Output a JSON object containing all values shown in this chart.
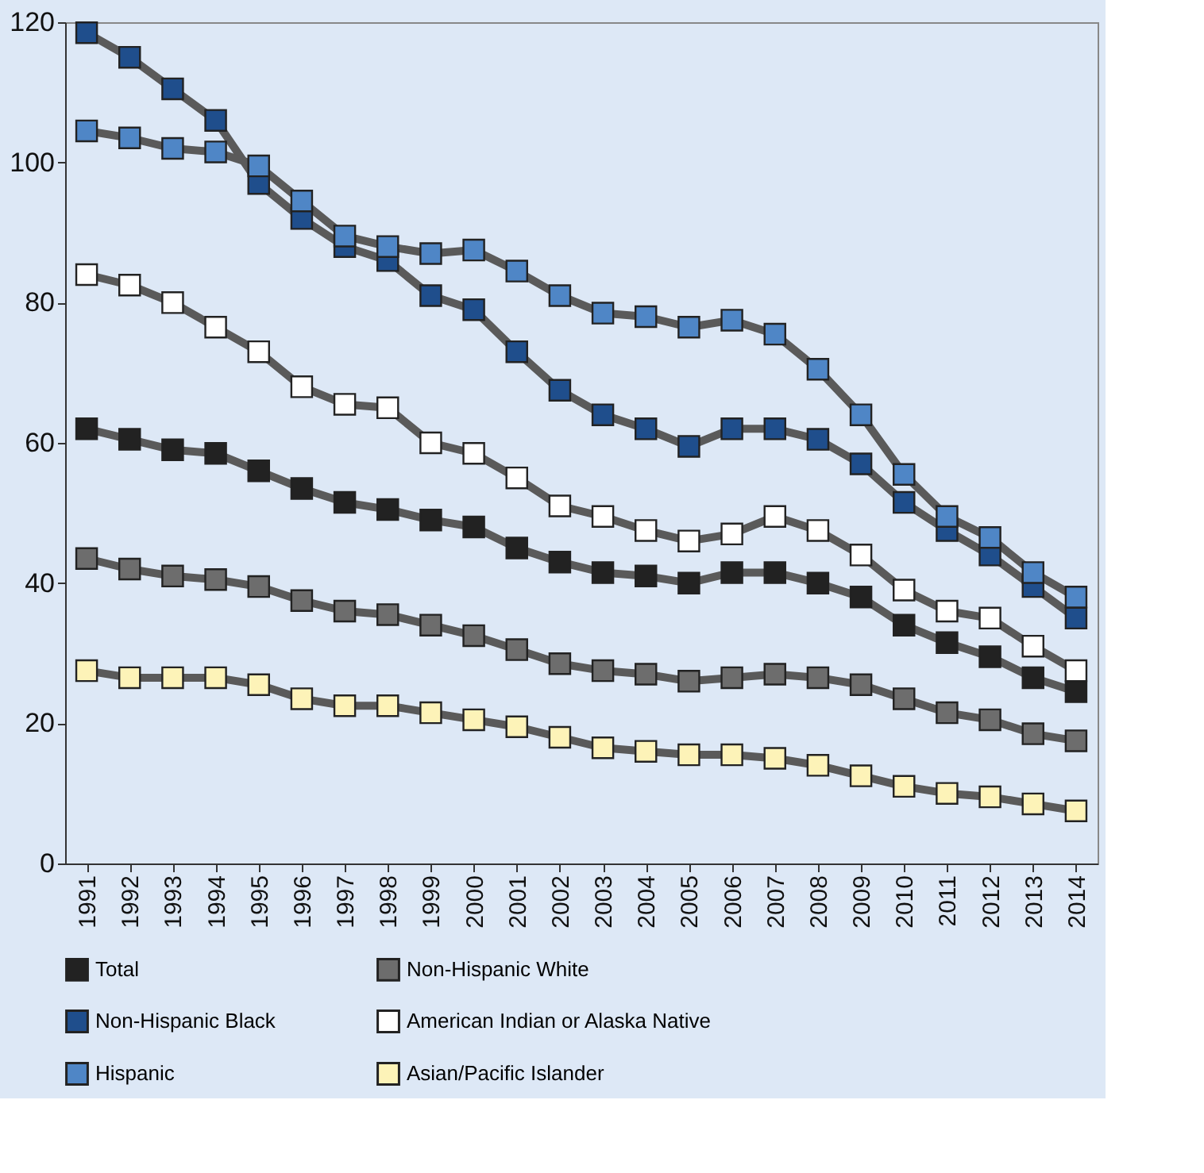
{
  "chart_data": {
    "type": "line",
    "categories": [
      "1991",
      "1992",
      "1993",
      "1994",
      "1995",
      "1996",
      "1997",
      "1998",
      "1999",
      "2000",
      "2001",
      "2002",
      "2003",
      "2004",
      "2005",
      "2006",
      "2007",
      "2008",
      "2009",
      "2010",
      "2011",
      "2012",
      "2013",
      "2014"
    ],
    "series": [
      {
        "name": "Total",
        "color": "#222222",
        "values": [
          62,
          60.5,
          59,
          58.5,
          56,
          53.5,
          51.5,
          50.5,
          49,
          48,
          45,
          43,
          41.5,
          41,
          40,
          41.5,
          41.5,
          40,
          38,
          34,
          31.5,
          29.5,
          26.5,
          24.5
        ]
      },
      {
        "name": "Non-Hispanic White",
        "color": "#6d6d6d",
        "values": [
          43.5,
          42,
          41,
          40.5,
          39.5,
          37.5,
          36,
          35.5,
          34,
          32.5,
          30.5,
          28.5,
          27.5,
          27,
          26,
          26.5,
          27,
          26.5,
          25.5,
          23.5,
          21.5,
          20.5,
          18.5,
          17.5
        ]
      },
      {
        "name": "Non-Hispanic Black",
        "color": "#1f4e8c",
        "values": [
          118.5,
          115,
          110.5,
          106,
          97,
          92,
          88,
          86,
          81,
          79,
          73,
          67.5,
          64,
          62,
          59.5,
          62,
          62,
          60.5,
          57,
          51.5,
          47.5,
          44,
          39.5,
          35
        ]
      },
      {
        "name": "American Indian or Alaska Native",
        "color": "#ffffff",
        "values": [
          84,
          82.5,
          80,
          76.5,
          73,
          68,
          65.5,
          65,
          60,
          58.5,
          55,
          51,
          49.5,
          47.5,
          46,
          47,
          49.5,
          47.5,
          44,
          39,
          36,
          35,
          31,
          27.5
        ]
      },
      {
        "name": "Hispanic",
        "color": "#4f86c6",
        "values": [
          104.5,
          103.5,
          102,
          101.5,
          99.5,
          94.5,
          89.5,
          88,
          87,
          87.5,
          84.5,
          81,
          78.5,
          78,
          76.5,
          77.5,
          75.5,
          70.5,
          64,
          55.5,
          49.5,
          46.5,
          41.5,
          38
        ]
      },
      {
        "name": "Asian/Pacific Islander",
        "color": "#fdf3b8",
        "values": [
          27.5,
          26.5,
          26.5,
          26.5,
          25.5,
          23.5,
          22.5,
          22.5,
          21.5,
          20.5,
          19.5,
          18,
          16.5,
          16,
          15.5,
          15.5,
          15,
          14,
          12.5,
          11,
          10,
          9.5,
          8.5,
          7.5
        ]
      }
    ],
    "ylim": [
      0,
      120
    ],
    "yticks": [
      0,
      20,
      40,
      60,
      80,
      100,
      120
    ],
    "grid": false,
    "legend": "bottom",
    "marker": "square",
    "line_style": "solid"
  }
}
